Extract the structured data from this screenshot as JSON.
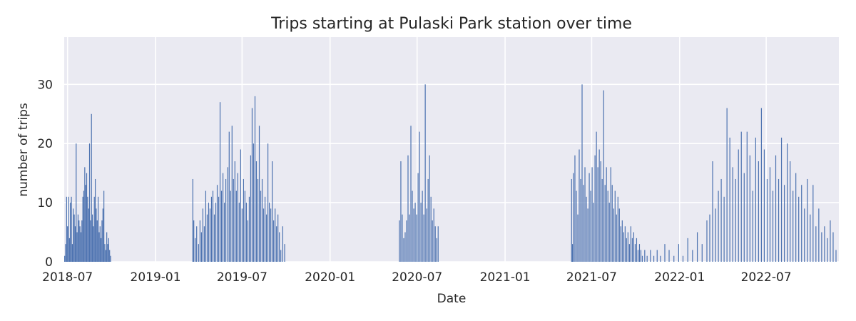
{
  "chart_data": {
    "type": "bar",
    "title": "Trips starting at Pulaski Park station over time",
    "xlabel": "Date",
    "ylabel": "number of trips",
    "xlim": [
      "2018-06-24",
      "2022-11-30"
    ],
    "ylim": [
      0,
      38
    ],
    "grid": true,
    "x_ticks": [
      "2018-07-01",
      "2019-01-01",
      "2019-07-01",
      "2020-01-01",
      "2020-07-01",
      "2021-01-01",
      "2021-07-01",
      "2022-01-01",
      "2022-07-01"
    ],
    "x_tick_labels": [
      "2018-07",
      "2019-01",
      "2019-07",
      "2020-01",
      "2020-07",
      "2021-01",
      "2021-07",
      "2022-01",
      "2022-07"
    ],
    "y_ticks": [
      0,
      10,
      20,
      30
    ],
    "y_tick_labels": [
      "0",
      "10",
      "20",
      "30"
    ],
    "series": [
      {
        "color": "#4c72b0",
        "values": [
          [
            "2018-06-25",
            1
          ],
          [
            "2018-06-27",
            3
          ],
          [
            "2018-06-29",
            11
          ],
          [
            "2018-07-01",
            6
          ],
          [
            "2018-07-03",
            11
          ],
          [
            "2018-07-05",
            4
          ],
          [
            "2018-07-07",
            10
          ],
          [
            "2018-07-09",
            11
          ],
          [
            "2018-07-11",
            3
          ],
          [
            "2018-07-13",
            9
          ],
          [
            "2018-07-15",
            8
          ],
          [
            "2018-07-17",
            6
          ],
          [
            "2018-07-19",
            20
          ],
          [
            "2018-07-21",
            5
          ],
          [
            "2018-07-23",
            8
          ],
          [
            "2018-07-25",
            7
          ],
          [
            "2018-07-27",
            6
          ],
          [
            "2018-07-29",
            5
          ],
          [
            "2018-07-31",
            7
          ],
          [
            "2018-08-02",
            11
          ],
          [
            "2018-08-04",
            12
          ],
          [
            "2018-08-06",
            16
          ],
          [
            "2018-08-08",
            13
          ],
          [
            "2018-08-10",
            15
          ],
          [
            "2018-08-12",
            11
          ],
          [
            "2018-08-14",
            9
          ],
          [
            "2018-08-16",
            20
          ],
          [
            "2018-08-18",
            7
          ],
          [
            "2018-08-20",
            25
          ],
          [
            "2018-08-22",
            8
          ],
          [
            "2018-08-24",
            6
          ],
          [
            "2018-08-26",
            11
          ],
          [
            "2018-08-28",
            14
          ],
          [
            "2018-08-30",
            9
          ],
          [
            "2018-09-01",
            7
          ],
          [
            "2018-09-03",
            11
          ],
          [
            "2018-09-05",
            5
          ],
          [
            "2018-09-07",
            6
          ],
          [
            "2018-09-09",
            4
          ],
          [
            "2018-09-11",
            7
          ],
          [
            "2018-09-13",
            9
          ],
          [
            "2018-09-15",
            12
          ],
          [
            "2018-09-17",
            3
          ],
          [
            "2018-09-19",
            2
          ],
          [
            "2018-09-21",
            5
          ],
          [
            "2018-09-23",
            3
          ],
          [
            "2018-09-25",
            4
          ],
          [
            "2018-09-27",
            2
          ],
          [
            "2018-09-29",
            1
          ],
          [
            "2019-03-20",
            14
          ],
          [
            "2019-03-22",
            7
          ],
          [
            "2019-03-25",
            4
          ],
          [
            "2019-03-28",
            6
          ],
          [
            "2019-04-01",
            3
          ],
          [
            "2019-04-04",
            7
          ],
          [
            "2019-04-07",
            5
          ],
          [
            "2019-04-10",
            9
          ],
          [
            "2019-04-13",
            6
          ],
          [
            "2019-04-16",
            12
          ],
          [
            "2019-04-19",
            8
          ],
          [
            "2019-04-22",
            10
          ],
          [
            "2019-04-25",
            9
          ],
          [
            "2019-04-28",
            11
          ],
          [
            "2019-05-01",
            12
          ],
          [
            "2019-05-04",
            8
          ],
          [
            "2019-05-07",
            10
          ],
          [
            "2019-05-10",
            13
          ],
          [
            "2019-05-13",
            11
          ],
          [
            "2019-05-16",
            27
          ],
          [
            "2019-05-19",
            12
          ],
          [
            "2019-05-22",
            15
          ],
          [
            "2019-05-25",
            10
          ],
          [
            "2019-05-28",
            14
          ],
          [
            "2019-06-01",
            16
          ],
          [
            "2019-06-04",
            22
          ],
          [
            "2019-06-07",
            12
          ],
          [
            "2019-06-10",
            23
          ],
          [
            "2019-06-13",
            14
          ],
          [
            "2019-06-16",
            17
          ],
          [
            "2019-06-19",
            12
          ],
          [
            "2019-06-22",
            15
          ],
          [
            "2019-06-25",
            10
          ],
          [
            "2019-06-28",
            19
          ],
          [
            "2019-07-01",
            9
          ],
          [
            "2019-07-04",
            14
          ],
          [
            "2019-07-07",
            12
          ],
          [
            "2019-07-10",
            10
          ],
          [
            "2019-07-13",
            7
          ],
          [
            "2019-07-16",
            11
          ],
          [
            "2019-07-19",
            18
          ],
          [
            "2019-07-22",
            26
          ],
          [
            "2019-07-25",
            20
          ],
          [
            "2019-07-28",
            28
          ],
          [
            "2019-07-31",
            17
          ],
          [
            "2019-08-03",
            14
          ],
          [
            "2019-08-06",
            23
          ],
          [
            "2019-08-09",
            12
          ],
          [
            "2019-08-12",
            14
          ],
          [
            "2019-08-15",
            9
          ],
          [
            "2019-08-18",
            11
          ],
          [
            "2019-08-21",
            8
          ],
          [
            "2019-08-24",
            20
          ],
          [
            "2019-08-27",
            10
          ],
          [
            "2019-08-30",
            9
          ],
          [
            "2019-09-02",
            17
          ],
          [
            "2019-09-05",
            7
          ],
          [
            "2019-09-08",
            9
          ],
          [
            "2019-09-11",
            6
          ],
          [
            "2019-09-14",
            8
          ],
          [
            "2019-09-17",
            5
          ],
          [
            "2019-09-20",
            2
          ],
          [
            "2019-09-24",
            6
          ],
          [
            "2019-09-28",
            3
          ],
          [
            "2020-05-25",
            7
          ],
          [
            "2020-05-28",
            17
          ],
          [
            "2020-05-31",
            8
          ],
          [
            "2020-06-03",
            4
          ],
          [
            "2020-06-06",
            5
          ],
          [
            "2020-06-09",
            7
          ],
          [
            "2020-06-12",
            18
          ],
          [
            "2020-06-15",
            8
          ],
          [
            "2020-06-18",
            23
          ],
          [
            "2020-06-21",
            12
          ],
          [
            "2020-06-24",
            9
          ],
          [
            "2020-06-27",
            10
          ],
          [
            "2020-06-30",
            8
          ],
          [
            "2020-07-03",
            15
          ],
          [
            "2020-07-06",
            22
          ],
          [
            "2020-07-09",
            10
          ],
          [
            "2020-07-12",
            12
          ],
          [
            "2020-07-15",
            8
          ],
          [
            "2020-07-18",
            30
          ],
          [
            "2020-07-21",
            9
          ],
          [
            "2020-07-24",
            14
          ],
          [
            "2020-07-27",
            18
          ],
          [
            "2020-07-30",
            11
          ],
          [
            "2020-08-02",
            7
          ],
          [
            "2020-08-05",
            9
          ],
          [
            "2020-08-08",
            6
          ],
          [
            "2020-08-11",
            4
          ],
          [
            "2020-08-14",
            6
          ],
          [
            "2021-05-20",
            14
          ],
          [
            "2021-05-22",
            3
          ],
          [
            "2021-05-24",
            15
          ],
          [
            "2021-05-27",
            18
          ],
          [
            "2021-05-30",
            12
          ],
          [
            "2021-06-02",
            8
          ],
          [
            "2021-06-05",
            19
          ],
          [
            "2021-06-08",
            14
          ],
          [
            "2021-06-11",
            30
          ],
          [
            "2021-06-14",
            13
          ],
          [
            "2021-06-17",
            16
          ],
          [
            "2021-06-20",
            11
          ],
          [
            "2021-06-23",
            9
          ],
          [
            "2021-06-26",
            15
          ],
          [
            "2021-06-29",
            12
          ],
          [
            "2021-07-02",
            16
          ],
          [
            "2021-07-05",
            10
          ],
          [
            "2021-07-08",
            18
          ],
          [
            "2021-07-11",
            22
          ],
          [
            "2021-07-14",
            16
          ],
          [
            "2021-07-17",
            19
          ],
          [
            "2021-07-20",
            17
          ],
          [
            "2021-07-23",
            14
          ],
          [
            "2021-07-26",
            29
          ],
          [
            "2021-07-29",
            13
          ],
          [
            "2021-08-01",
            16
          ],
          [
            "2021-08-04",
            12
          ],
          [
            "2021-08-07",
            10
          ],
          [
            "2021-08-10",
            16
          ],
          [
            "2021-08-13",
            13
          ],
          [
            "2021-08-16",
            9
          ],
          [
            "2021-08-19",
            12
          ],
          [
            "2021-08-22",
            8
          ],
          [
            "2021-08-25",
            11
          ],
          [
            "2021-08-28",
            9
          ],
          [
            "2021-08-31",
            6
          ],
          [
            "2021-09-03",
            7
          ],
          [
            "2021-09-06",
            5
          ],
          [
            "2021-09-09",
            6
          ],
          [
            "2021-09-12",
            4
          ],
          [
            "2021-09-15",
            5
          ],
          [
            "2021-09-18",
            3
          ],
          [
            "2021-09-21",
            6
          ],
          [
            "2021-09-24",
            4
          ],
          [
            "2021-09-27",
            5
          ],
          [
            "2021-09-30",
            3
          ],
          [
            "2021-10-03",
            4
          ],
          [
            "2021-10-06",
            2
          ],
          [
            "2021-10-09",
            3
          ],
          [
            "2021-10-12",
            2
          ],
          [
            "2021-10-15",
            1
          ],
          [
            "2021-10-20",
            2
          ],
          [
            "2021-10-25",
            1
          ],
          [
            "2021-11-01",
            2
          ],
          [
            "2021-11-08",
            1
          ],
          [
            "2021-11-15",
            2
          ],
          [
            "2021-11-22",
            1
          ],
          [
            "2021-12-01",
            3
          ],
          [
            "2021-12-10",
            2
          ],
          [
            "2021-12-20",
            1
          ],
          [
            "2021-12-30",
            3
          ],
          [
            "2022-01-08",
            1
          ],
          [
            "2022-01-18",
            4
          ],
          [
            "2022-01-28",
            2
          ],
          [
            "2022-02-07",
            5
          ],
          [
            "2022-02-17",
            3
          ],
          [
            "2022-02-27",
            7
          ],
          [
            "2022-03-05",
            8
          ],
          [
            "2022-03-11",
            17
          ],
          [
            "2022-03-17",
            9
          ],
          [
            "2022-03-23",
            12
          ],
          [
            "2022-03-29",
            14
          ],
          [
            "2022-04-04",
            11
          ],
          [
            "2022-04-10",
            26
          ],
          [
            "2022-04-16",
            21
          ],
          [
            "2022-04-22",
            16
          ],
          [
            "2022-04-28",
            14
          ],
          [
            "2022-05-04",
            19
          ],
          [
            "2022-05-10",
            22
          ],
          [
            "2022-05-16",
            15
          ],
          [
            "2022-05-22",
            22
          ],
          [
            "2022-05-28",
            18
          ],
          [
            "2022-06-03",
            12
          ],
          [
            "2022-06-09",
            21
          ],
          [
            "2022-06-15",
            17
          ],
          [
            "2022-06-21",
            26
          ],
          [
            "2022-06-27",
            19
          ],
          [
            "2022-07-03",
            14
          ],
          [
            "2022-07-09",
            16
          ],
          [
            "2022-07-15",
            12
          ],
          [
            "2022-07-21",
            18
          ],
          [
            "2022-07-27",
            14
          ],
          [
            "2022-08-02",
            21
          ],
          [
            "2022-08-08",
            13
          ],
          [
            "2022-08-14",
            20
          ],
          [
            "2022-08-20",
            17
          ],
          [
            "2022-08-26",
            12
          ],
          [
            "2022-09-01",
            15
          ],
          [
            "2022-09-07",
            11
          ],
          [
            "2022-09-13",
            13
          ],
          [
            "2022-09-19",
            9
          ],
          [
            "2022-09-25",
            14
          ],
          [
            "2022-10-01",
            8
          ],
          [
            "2022-10-07",
            13
          ],
          [
            "2022-10-13",
            6
          ],
          [
            "2022-10-19",
            9
          ],
          [
            "2022-10-25",
            5
          ],
          [
            "2022-10-31",
            6
          ],
          [
            "2022-11-06",
            4
          ],
          [
            "2022-11-12",
            7
          ],
          [
            "2022-11-18",
            5
          ],
          [
            "2022-11-24",
            2
          ]
        ]
      }
    ]
  }
}
